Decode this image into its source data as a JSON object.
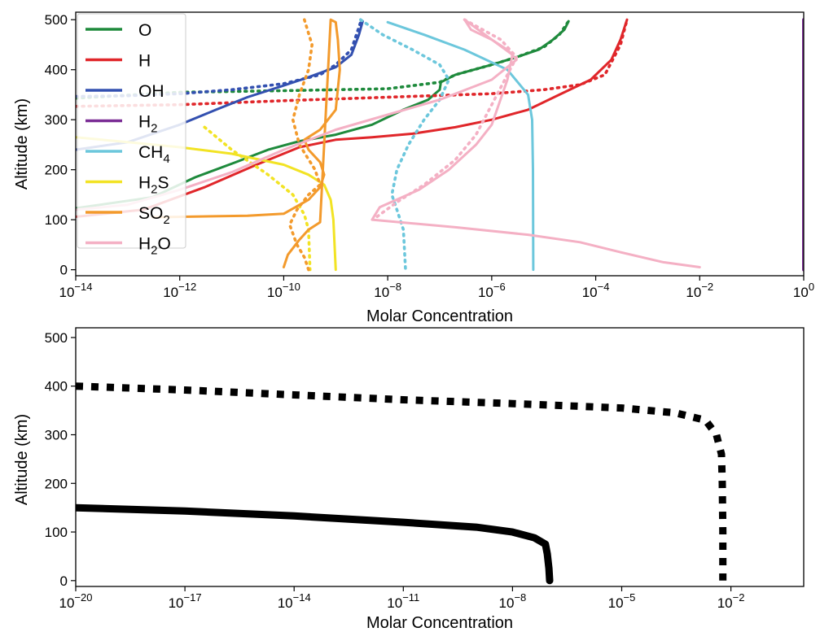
{
  "chart_data": [
    {
      "type": "line",
      "xlabel": "Molar Concentration",
      "ylabel": "Altitude (km)",
      "xscale": "log",
      "xlim": [
        1e-14,
        1
      ],
      "ylim": [
        -12,
        515
      ],
      "xticks": [
        {
          "base": "10",
          "exp": "−14",
          "value": 1e-14
        },
        {
          "base": "10",
          "exp": "−12",
          "value": 1e-12
        },
        {
          "base": "10",
          "exp": "−10",
          "value": 1e-10
        },
        {
          "base": "10",
          "exp": "−8",
          "value": 1e-08
        },
        {
          "base": "10",
          "exp": "−6",
          "value": 1e-06
        },
        {
          "base": "10",
          "exp": "−4",
          "value": 0.0001
        },
        {
          "base": "10",
          "exp": "−2",
          "value": 0.01
        },
        {
          "base": "10",
          "exp": "0",
          "value": 1
        }
      ],
      "yticks": [
        "0",
        "100",
        "200",
        "300",
        "400",
        "500"
      ],
      "legend_position": "upper-left",
      "legend": [
        {
          "main": "O",
          "sub": "",
          "tail": "",
          "color": "#1e8a3c"
        },
        {
          "main": "H",
          "sub": "",
          "tail": "",
          "color": "#e0262a"
        },
        {
          "main": "OH",
          "sub": "",
          "tail": "",
          "color": "#3350b0"
        },
        {
          "main": "H",
          "sub": "2",
          "tail": "",
          "color": "#7a2c95"
        },
        {
          "main": "CH",
          "sub": "4",
          "tail": "",
          "color": "#6cc7dc"
        },
        {
          "main": "H",
          "sub": "2",
          "tail": "S",
          "color": "#f2e324"
        },
        {
          "main": "SO",
          "sub": "2",
          "tail": "",
          "color": "#f39a2c"
        },
        {
          "main": "H",
          "sub": "2",
          "tail": "O",
          "color": "#f4b0c4"
        }
      ],
      "series": [
        {
          "name": "O",
          "style": "solid",
          "color": "#1e8a3c",
          "points": [
            [
              1e-15,
              108
            ],
            [
              3e-13,
              145
            ],
            [
              2e-12,
              185
            ],
            [
              1.2e-11,
              215
            ],
            [
              5e-11,
              240
            ],
            [
              2e-10,
              257
            ],
            [
              1e-09,
              270
            ],
            [
              5e-09,
              290
            ],
            [
              2e-08,
              320
            ],
            [
              6e-08,
              340
            ],
            [
              1e-07,
              360
            ],
            [
              1.05e-07,
              375
            ],
            [
              2e-07,
              390
            ],
            [
              1e-06,
              410
            ],
            [
              3e-06,
              425
            ],
            [
              8e-06,
              440
            ],
            [
              1.5e-05,
              460
            ],
            [
              2.5e-05,
              480
            ],
            [
              3e-05,
              497
            ]
          ]
        },
        {
          "name": "O",
          "style": "dotted",
          "color": "#1e8a3c",
          "points": [
            [
              1e-15,
              337
            ],
            [
              1e-12,
              355
            ],
            [
              1e-10,
              358
            ],
            [
              1e-08,
              362
            ],
            [
              1e-07,
              375
            ],
            [
              2e-07,
              390
            ],
            [
              1e-06,
              410
            ],
            [
              3e-06,
              425
            ],
            [
              1e-05,
              445
            ],
            [
              2e-05,
              470
            ],
            [
              3e-05,
              497
            ]
          ]
        },
        {
          "name": "H",
          "style": "solid",
          "color": "#e0262a",
          "points": [
            [
              1e-15,
              95
            ],
            [
              2e-13,
              120
            ],
            [
              3e-12,
              165
            ],
            [
              3e-11,
              210
            ],
            [
              2e-10,
              245
            ],
            [
              1e-09,
              260
            ],
            [
              5e-09,
              265
            ],
            [
              3e-08,
              272
            ],
            [
              2e-07,
              285
            ],
            [
              1e-06,
              300
            ],
            [
              5e-06,
              320
            ],
            [
              2e-05,
              350
            ],
            [
              8e-05,
              380
            ],
            [
              0.0002,
              420
            ],
            [
              0.0003,
              460
            ],
            [
              0.0004,
              500
            ]
          ]
        },
        {
          "name": "H",
          "style": "dotted",
          "color": "#e0262a",
          "points": [
            [
              1e-15,
              325
            ],
            [
              1e-12,
              330
            ],
            [
              1e-10,
              338
            ],
            [
              1e-08,
              345
            ],
            [
              1e-06,
              352
            ],
            [
              1e-05,
              360
            ],
            [
              5e-05,
              370
            ],
            [
              0.00015,
              390
            ],
            [
              0.0003,
              450
            ],
            [
              0.0004,
              500
            ]
          ]
        },
        {
          "name": "OH",
          "style": "solid",
          "color": "#3350b0",
          "points": [
            [
              1e-15,
              225
            ],
            [
              1e-13,
              255
            ],
            [
              1e-12,
              290
            ],
            [
              5e-12,
              320
            ],
            [
              2e-11,
              345
            ],
            [
              8e-11,
              365
            ],
            [
              3e-10,
              385
            ],
            [
              1e-09,
              405
            ],
            [
              2e-09,
              430
            ],
            [
              2.8e-09,
              470
            ],
            [
              3.3e-09,
              497
            ]
          ]
        },
        {
          "name": "OH",
          "style": "dotted",
          "color": "#3350b0",
          "points": [
            [
              1e-15,
              345
            ],
            [
              1e-13,
              348
            ],
            [
              1e-12,
              352
            ],
            [
              1e-11,
              360
            ],
            [
              1e-10,
              372
            ],
            [
              5e-10,
              390
            ],
            [
              1e-09,
              410
            ],
            [
              2e-09,
              440
            ],
            [
              3e-09,
              495
            ]
          ]
        },
        {
          "name": "H₂",
          "style": "solid",
          "color": "#7a2c95",
          "points": [
            [
              1,
              0
            ],
            [
              1,
              500
            ]
          ]
        },
        {
          "name": "CH₄",
          "style": "solid",
          "color": "#6cc7dc",
          "points": [
            [
              1e-08,
              495
            ],
            [
              5e-08,
              470
            ],
            [
              3e-07,
              440
            ],
            [
              2e-06,
              400
            ],
            [
              5e-06,
              350
            ],
            [
              6e-06,
              300
            ],
            [
              6.2e-06,
              200
            ],
            [
              6.3e-06,
              0
            ]
          ]
        },
        {
          "name": "CH₄",
          "style": "dotted",
          "color": "#6cc7dc",
          "points": [
            [
              3e-09,
              500
            ],
            [
              8e-09,
              470
            ],
            [
              3e-08,
              440
            ],
            [
              1e-07,
              410
            ],
            [
              1.5e-07,
              380
            ],
            [
              1e-07,
              340
            ],
            [
              5e-08,
              300
            ],
            [
              2.5e-08,
              250
            ],
            [
              1.5e-08,
              200
            ],
            [
              1.2e-08,
              150
            ],
            [
              1.5e-08,
              120
            ],
            [
              2e-08,
              80
            ],
            [
              2.2e-08,
              0
            ]
          ]
        },
        {
          "name": "H₂S",
          "style": "solid",
          "color": "#f2e324",
          "points": [
            [
              1e-15,
              275
            ],
            [
              1e-13,
              255
            ],
            [
              1e-12,
              245
            ],
            [
              1e-11,
              232
            ],
            [
              1e-10,
              210
            ],
            [
              3e-10,
              190
            ],
            [
              6e-10,
              170
            ],
            [
              8e-10,
              140
            ],
            [
              9e-10,
              100
            ],
            [
              1e-09,
              0
            ]
          ]
        },
        {
          "name": "H₂S",
          "style": "dotted",
          "color": "#f2e324",
          "points": [
            [
              3e-12,
              285
            ],
            [
              1e-11,
              240
            ],
            [
              5e-11,
              190
            ],
            [
              1.5e-10,
              150
            ],
            [
              2.5e-10,
              110
            ],
            [
              3e-10,
              80
            ],
            [
              3.2e-10,
              0
            ]
          ]
        },
        {
          "name": "SO₂",
          "style": "solid",
          "color": "#f39a2c",
          "points": [
            [
              3e-13,
              105
            ],
            [
              2e-11,
              108
            ],
            [
              1e-10,
              112
            ],
            [
              3e-10,
              140
            ],
            [
              5e-10,
              165
            ],
            [
              6e-10,
              190
            ],
            [
              5e-10,
              215
            ],
            [
              3e-10,
              240
            ],
            [
              2.5e-10,
              260
            ],
            [
              5e-10,
              280
            ],
            [
              1e-09,
              320
            ],
            [
              1.2e-09,
              400
            ],
            [
              1.1e-09,
              460
            ],
            [
              1e-09,
              495
            ],
            [
              8e-10,
              500
            ],
            [
              5e-10,
              95
            ],
            [
              3e-10,
              80
            ],
            [
              2e-10,
              60
            ],
            [
              1.2e-10,
              30
            ],
            [
              1e-10,
              5
            ]
          ]
        },
        {
          "name": "SO₂",
          "style": "dotted",
          "color": "#f39a2c",
          "points": [
            [
              2.5e-10,
              500
            ],
            [
              3.5e-10,
              450
            ],
            [
              3e-10,
              400
            ],
            [
              2e-10,
              350
            ],
            [
              1.5e-10,
              300
            ],
            [
              2e-10,
              250
            ],
            [
              4e-10,
              200
            ],
            [
              5e-10,
              170
            ],
            [
              3e-10,
              150
            ],
            [
              1.8e-10,
              120
            ],
            [
              1.3e-10,
              90
            ],
            [
              1.8e-10,
              50
            ],
            [
              2.5e-10,
              25
            ],
            [
              3e-10,
              0
            ]
          ]
        },
        {
          "name": "H₂O",
          "style": "solid",
          "color": "#f4b0c4",
          "points": [
            [
              1e-15,
              110
            ],
            [
              1e-13,
              130
            ],
            [
              1e-12,
              160
            ],
            [
              1e-11,
              195
            ],
            [
              1e-10,
              240
            ],
            [
              1e-09,
              280
            ],
            [
              1e-08,
              310
            ],
            [
              1e-07,
              340
            ],
            [
              1e-06,
              380
            ],
            [
              3e-06,
              420
            ],
            [
              2e-06,
              440
            ],
            [
              1e-06,
              460
            ],
            [
              4e-07,
              480
            ],
            [
              3e-07,
              500
            ],
            [
              2.5e-06,
              430
            ],
            [
              2e-06,
              380
            ],
            [
              1e-06,
              290
            ],
            [
              5e-07,
              250
            ],
            [
              1.5e-07,
              200
            ],
            [
              4e-08,
              160
            ],
            [
              7e-09,
              125
            ],
            [
              5e-09,
              100
            ],
            [
              2e-07,
              85
            ],
            [
              5e-06,
              70
            ],
            [
              5e-05,
              55
            ],
            [
              0.0003,
              35
            ],
            [
              0.002,
              15
            ],
            [
              0.01,
              5
            ]
          ]
        },
        {
          "name": "H₂O",
          "style": "dotted",
          "color": "#f4b0c4",
          "points": [
            [
              3e-07,
              500
            ],
            [
              1.5e-06,
              460
            ],
            [
              3e-06,
              425
            ],
            [
              2e-06,
              390
            ],
            [
              1e-06,
              330
            ],
            [
              5e-07,
              270
            ],
            [
              2e-07,
              220
            ],
            [
              5e-08,
              170
            ],
            [
              1.5e-08,
              135
            ],
            [
              6e-09,
              105
            ]
          ]
        }
      ]
    },
    {
      "type": "line",
      "xlabel": "Molar Concentration",
      "ylabel": "Altitude (km)",
      "xscale": "log",
      "xlim": [
        1e-20,
        1.0
      ],
      "ylim": [
        -12,
        520
      ],
      "xticks": [
        {
          "base": "10",
          "exp": "−20",
          "value": 1e-20
        },
        {
          "base": "10",
          "exp": "−17",
          "value": 1e-17
        },
        {
          "base": "10",
          "exp": "−14",
          "value": 1e-14
        },
        {
          "base": "10",
          "exp": "−11",
          "value": 1e-11
        },
        {
          "base": "10",
          "exp": "−8",
          "value": 1e-08
        },
        {
          "base": "10",
          "exp": "−5",
          "value": 1e-05
        },
        {
          "base": "10",
          "exp": "−2",
          "value": 0.01
        }
      ],
      "yticks": [
        "0",
        "100",
        "200",
        "300",
        "400",
        "500"
      ],
      "series": [
        {
          "style": "solid",
          "color": "#000000",
          "points": [
            [
              1e-20,
              150
            ],
            [
              1e-17,
              143
            ],
            [
              1e-14,
              133
            ],
            [
              1e-11,
              120
            ],
            [
              1e-09,
              110
            ],
            [
              1e-08,
              100
            ],
            [
              4e-08,
              88
            ],
            [
              8e-08,
              75
            ],
            [
              9e-08,
              55
            ],
            [
              1e-07,
              25
            ],
            [
              1.05e-07,
              0
            ]
          ]
        },
        {
          "style": "dotted",
          "color": "#000000",
          "points": [
            [
              1e-20,
              400
            ],
            [
              1e-17,
              392
            ],
            [
              1e-14,
              382
            ],
            [
              1e-11,
              372
            ],
            [
              1e-08,
              364
            ],
            [
              1e-05,
              355
            ],
            [
              0.0003,
              345
            ],
            [
              0.002,
              330
            ],
            [
              0.004,
              300
            ],
            [
              0.0055,
              260
            ],
            [
              0.0058,
              200
            ],
            [
              0.006,
              100
            ],
            [
              0.006,
              0
            ]
          ]
        }
      ]
    }
  ]
}
